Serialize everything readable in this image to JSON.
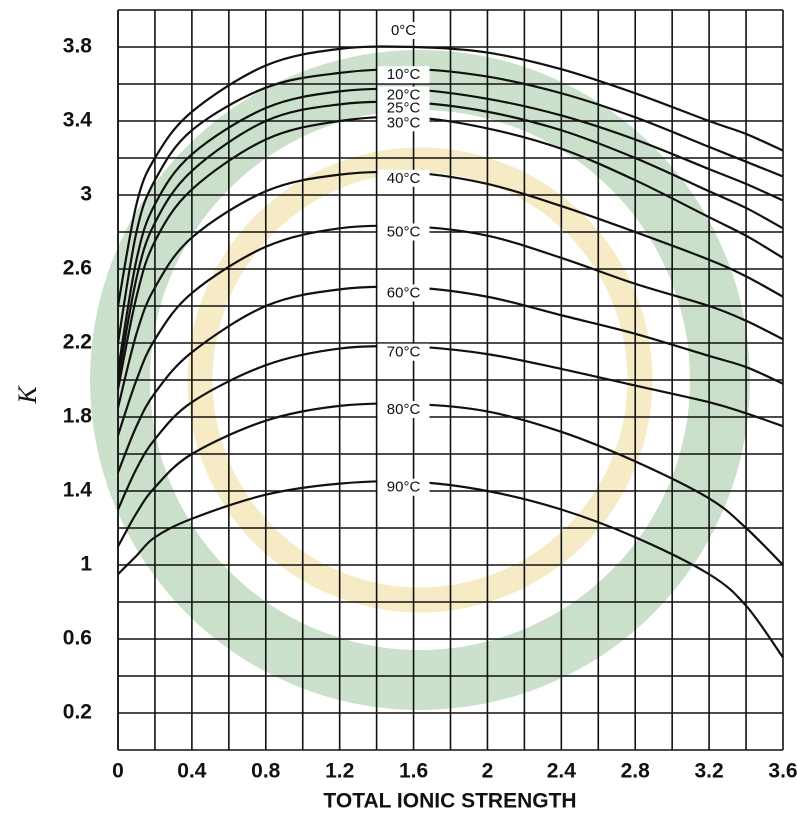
{
  "chart_data": {
    "type": "line",
    "x_label": "TOTAL IONIC STRENGTH",
    "y_label": "K",
    "xlim": [
      0,
      3.6
    ],
    "ylim": [
      0,
      4.0
    ],
    "xticks": [
      0,
      0.4,
      0.8,
      1.2,
      1.6,
      2.0,
      2.4,
      2.8,
      3.2,
      3.6
    ],
    "minor_xticks": [
      0.2,
      0.6,
      1.0,
      1.4,
      1.8,
      2.2,
      2.6,
      3.0,
      3.4
    ],
    "yticks": [
      0.2,
      0.6,
      1.0,
      1.4,
      1.8,
      2.2,
      2.6,
      3.0,
      3.4,
      3.8
    ],
    "minor_yticks": [
      0.4,
      0.8,
      1.2,
      1.6,
      2.0,
      2.4,
      2.8,
      3.2,
      3.6,
      4.0
    ],
    "grid": true,
    "line_color": "#111111",
    "x": [
      0,
      0.1,
      0.2,
      0.4,
      0.8,
      1.2,
      1.6,
      2.0,
      2.4,
      2.8,
      3.2,
      3.4,
      3.6
    ],
    "series": [
      {
        "name": "0°C",
        "values": [
          2.4,
          2.95,
          3.2,
          3.45,
          3.7,
          3.79,
          3.8,
          3.77,
          3.68,
          3.55,
          3.4,
          3.33,
          3.24
        ]
      },
      {
        "name": "10°C",
        "values": [
          2.2,
          2.8,
          3.08,
          3.35,
          3.58,
          3.66,
          3.68,
          3.64,
          3.55,
          3.42,
          3.26,
          3.18,
          3.1
        ]
      },
      {
        "name": "20°C",
        "values": [
          2.05,
          2.65,
          2.95,
          3.22,
          3.47,
          3.56,
          3.57,
          3.52,
          3.43,
          3.3,
          3.14,
          3.06,
          2.97
        ]
      },
      {
        "name": "25°C",
        "values": [
          2.0,
          2.55,
          2.85,
          3.13,
          3.4,
          3.49,
          3.5,
          3.45,
          3.35,
          3.2,
          3.02,
          2.93,
          2.82
        ]
      },
      {
        "name": "30°C",
        "values": [
          1.95,
          2.45,
          2.75,
          3.03,
          3.3,
          3.4,
          3.42,
          3.36,
          3.25,
          3.08,
          2.88,
          2.78,
          2.66
        ]
      },
      {
        "name": "40°C",
        "values": [
          1.85,
          2.25,
          2.5,
          2.77,
          3.02,
          3.11,
          3.12,
          3.06,
          2.94,
          2.8,
          2.65,
          2.56,
          2.45
        ]
      },
      {
        "name": "50°C",
        "values": [
          1.7,
          2.0,
          2.22,
          2.47,
          2.72,
          2.82,
          2.83,
          2.78,
          2.66,
          2.52,
          2.4,
          2.32,
          2.22
        ]
      },
      {
        "name": "60°C",
        "values": [
          1.5,
          1.75,
          1.93,
          2.15,
          2.4,
          2.49,
          2.5,
          2.45,
          2.35,
          2.25,
          2.13,
          2.07,
          1.98
        ]
      },
      {
        "name": "70°C",
        "values": [
          1.3,
          1.52,
          1.68,
          1.88,
          2.08,
          2.17,
          2.18,
          2.14,
          2.06,
          1.97,
          1.88,
          1.82,
          1.75
        ]
      },
      {
        "name": "80°C",
        "values": [
          1.1,
          1.28,
          1.42,
          1.6,
          1.78,
          1.86,
          1.87,
          1.83,
          1.72,
          1.56,
          1.36,
          1.2,
          1.0
        ]
      },
      {
        "name": "90°C",
        "values": [
          0.95,
          1.05,
          1.15,
          1.25,
          1.38,
          1.44,
          1.45,
          1.4,
          1.3,
          1.15,
          0.95,
          0.78,
          0.5
        ]
      }
    ]
  }
}
